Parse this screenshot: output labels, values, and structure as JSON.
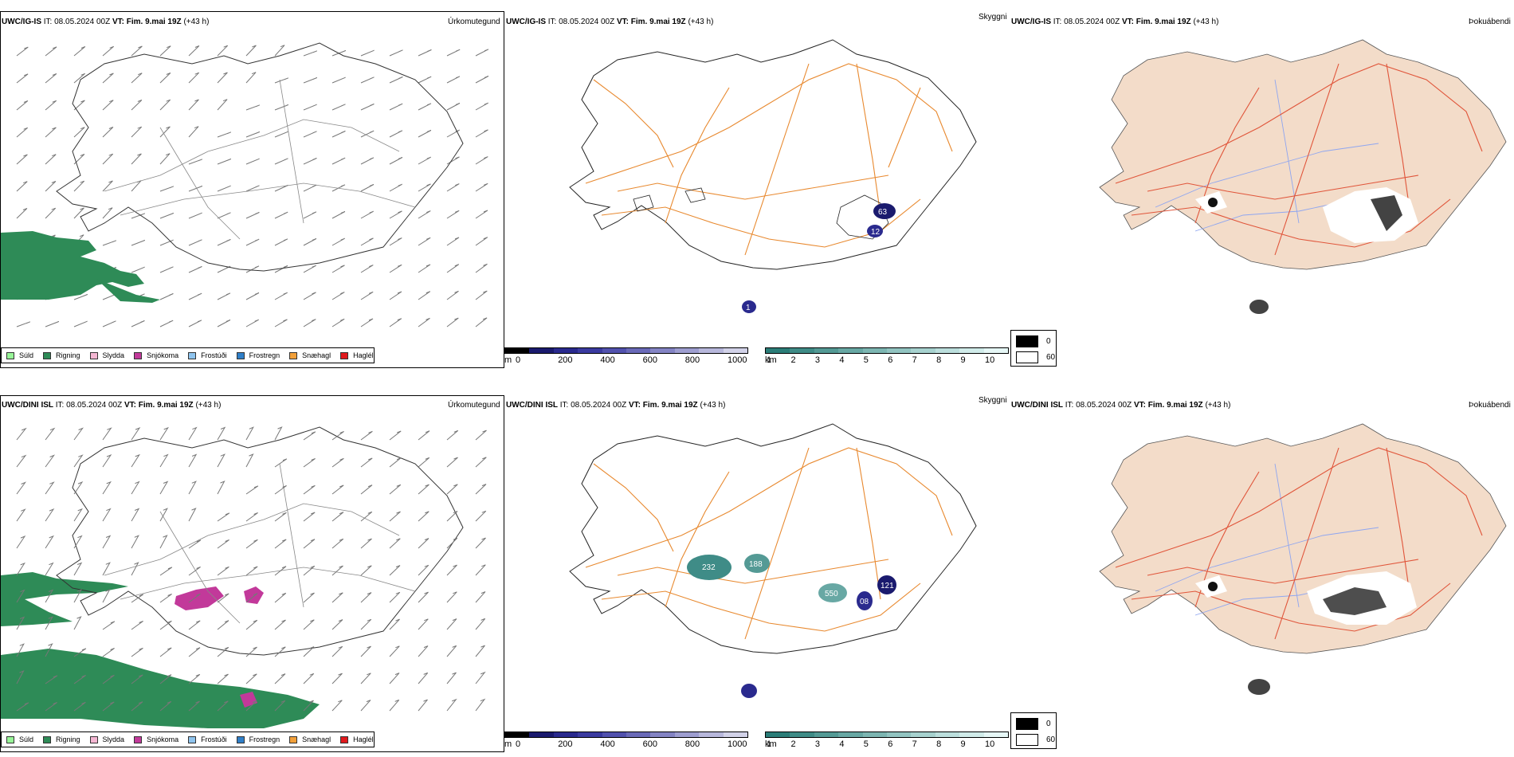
{
  "rows": [
    {
      "model": "UWC/IG-IS",
      "it_label": "IT:",
      "it_value": "08.05.2024 00Z",
      "vt_label": "VT:",
      "vt_value": "Fim. 9.mai 19Z",
      "lead": "(+43 h)"
    },
    {
      "model": "UWC/DINI ISL",
      "it_label": "IT:",
      "it_value": "08.05.2024 00Z",
      "vt_label": "VT:",
      "vt_value": "Fim. 9.mai 19Z",
      "lead": "(+43 h)"
    }
  ],
  "panel_labels": {
    "precip": "Úrkomutegund",
    "visibility": "Skyggni",
    "fog": "Þokuábendi"
  },
  "precip_legend": [
    {
      "label": "Súld",
      "color": "#98f598"
    },
    {
      "label": "Rigning",
      "color": "#2e8b57"
    },
    {
      "label": "Slydda",
      "color": "#f4b6d2"
    },
    {
      "label": "Snjókoma",
      "color": "#c2399a"
    },
    {
      "label": "Frostúði",
      "color": "#8fc4ee"
    },
    {
      "label": "Frostregn",
      "color": "#2f7fc8"
    },
    {
      "label": "Snæhagl",
      "color": "#f2a03a"
    },
    {
      "label": "Haglél",
      "color": "#e0191c"
    }
  ],
  "height_colorbar": {
    "unit": "m",
    "ticks": [
      "0",
      "200",
      "400",
      "600",
      "800",
      "1000"
    ],
    "colors": [
      "#000000",
      "#1a1a6e",
      "#2a2a8e",
      "#3b3ba0",
      "#5252ae",
      "#6a6ab8",
      "#8484c4",
      "#9e9ed0",
      "#b8b8dc",
      "#d2d2e8"
    ]
  },
  "vis_colorbar": {
    "unit": "km",
    "ticks": [
      "1",
      "2",
      "3",
      "4",
      "5",
      "6",
      "7",
      "8",
      "9",
      "10"
    ],
    "colors": [
      "#2b7d78",
      "#3f8c87",
      "#549a95",
      "#68a8a4",
      "#7db6b2",
      "#92c4c1",
      "#a7d2cf",
      "#bcdfdd",
      "#d1ecea",
      "#e6f7f6"
    ]
  },
  "fog_legend": [
    {
      "label": "0",
      "color": "#000000"
    },
    {
      "label": "60",
      "color": "#ffffff"
    }
  ],
  "vis_values_top": [
    "63",
    "12",
    "1"
  ],
  "vis_values_bottom": [
    "232",
    "188",
    "550",
    "08",
    "121"
  ],
  "colors": {
    "roads": "#e8892f",
    "fog_land": "#f3dcc9",
    "fog_roads": "#e0553a",
    "fog_rivers": "#8fa6f0",
    "rain": "#2e8b57",
    "snow": "#c2399a"
  }
}
